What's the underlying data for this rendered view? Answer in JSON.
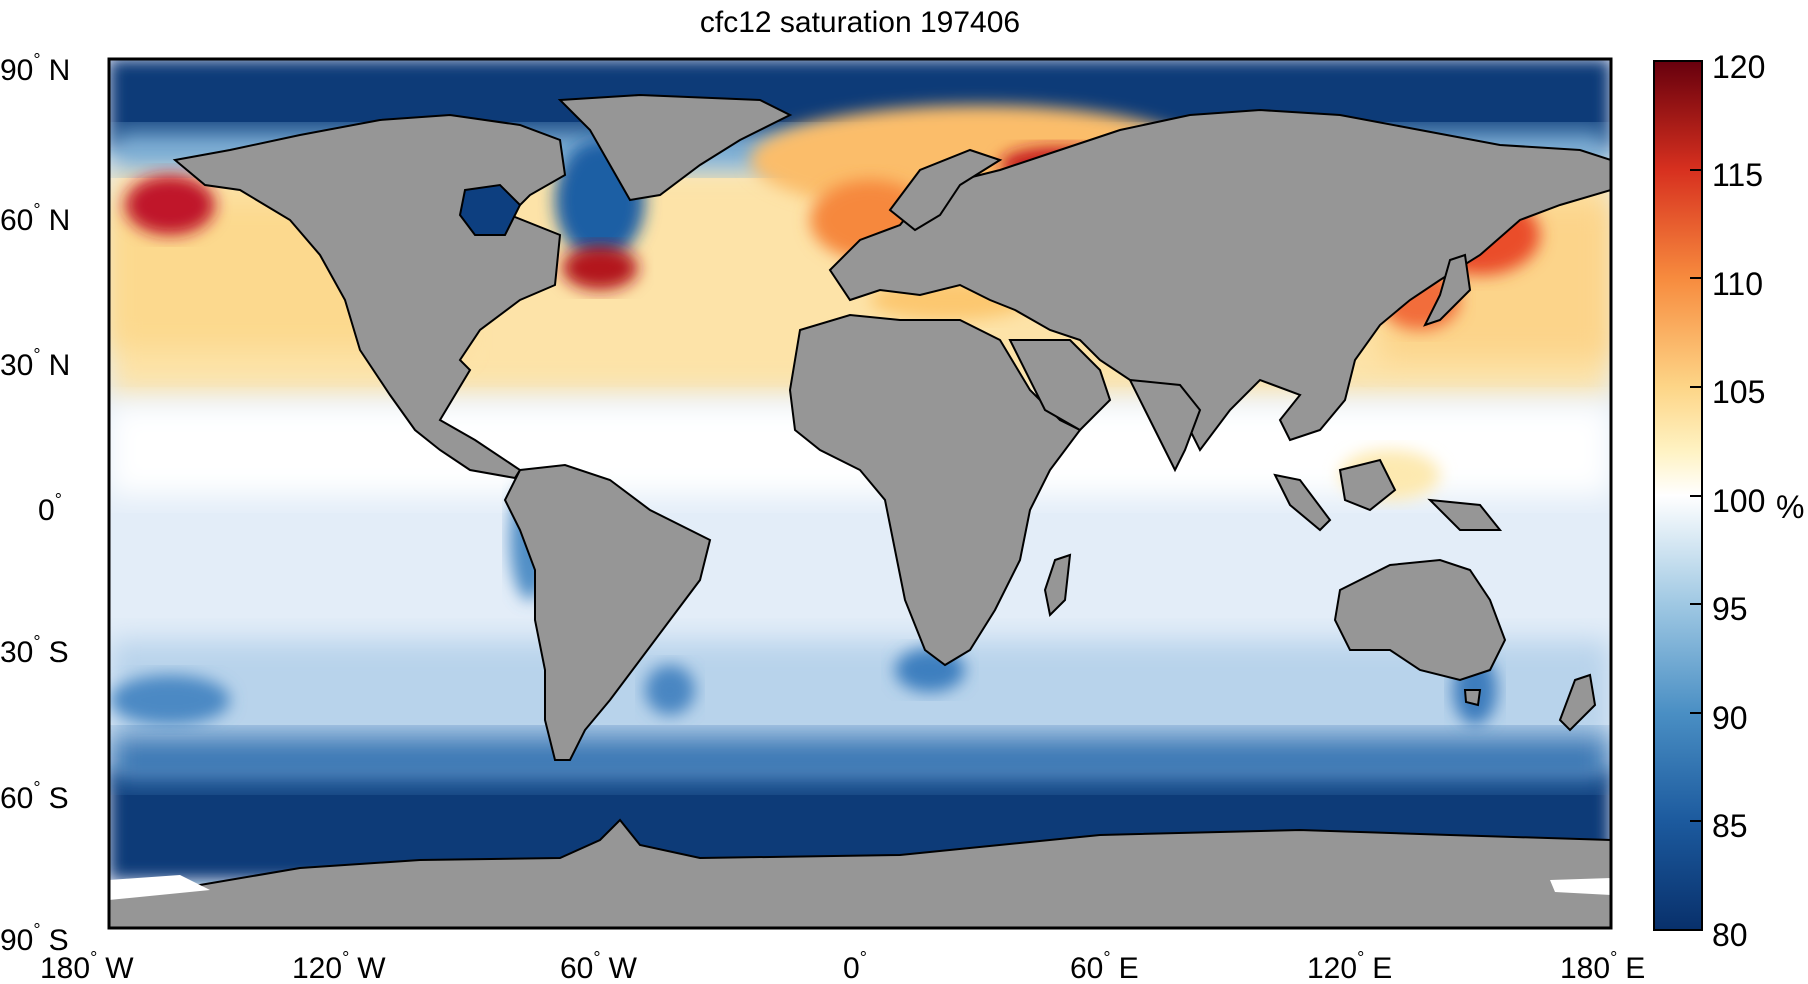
{
  "figure": {
    "title": "cfc12 saturation 197406"
  },
  "map_axes": {
    "lat_ticks": [
      {
        "deg": "90",
        "hemi": "N"
      },
      {
        "deg": "60",
        "hemi": "N"
      },
      {
        "deg": "30",
        "hemi": "N"
      },
      {
        "deg": "0",
        "hemi": ""
      },
      {
        "deg": "30",
        "hemi": "S"
      },
      {
        "deg": "60",
        "hemi": "S"
      },
      {
        "deg": "90",
        "hemi": "S"
      }
    ],
    "lon_ticks": [
      {
        "deg": "180",
        "hemi": "W"
      },
      {
        "deg": "120",
        "hemi": "W"
      },
      {
        "deg": "60",
        "hemi": "W"
      },
      {
        "deg": "0",
        "hemi": ""
      },
      {
        "deg": "60",
        "hemi": "E"
      },
      {
        "deg": "120",
        "hemi": "E"
      },
      {
        "deg": "180",
        "hemi": "E"
      }
    ],
    "degree_symbol": "°",
    "lat_range": [
      -90,
      90
    ],
    "lon_range": [
      -180,
      180
    ]
  },
  "colorbar": {
    "unit": "%",
    "range": [
      80,
      120
    ],
    "ticks": [
      "120",
      "115",
      "110",
      "105",
      "100",
      "95",
      "90",
      "85",
      "80"
    ],
    "colors": {
      "min": "#08306b",
      "mid": "#ffffff",
      "max": "#67000d",
      "land": "#969696",
      "ice": "#ffffff"
    }
  }
}
